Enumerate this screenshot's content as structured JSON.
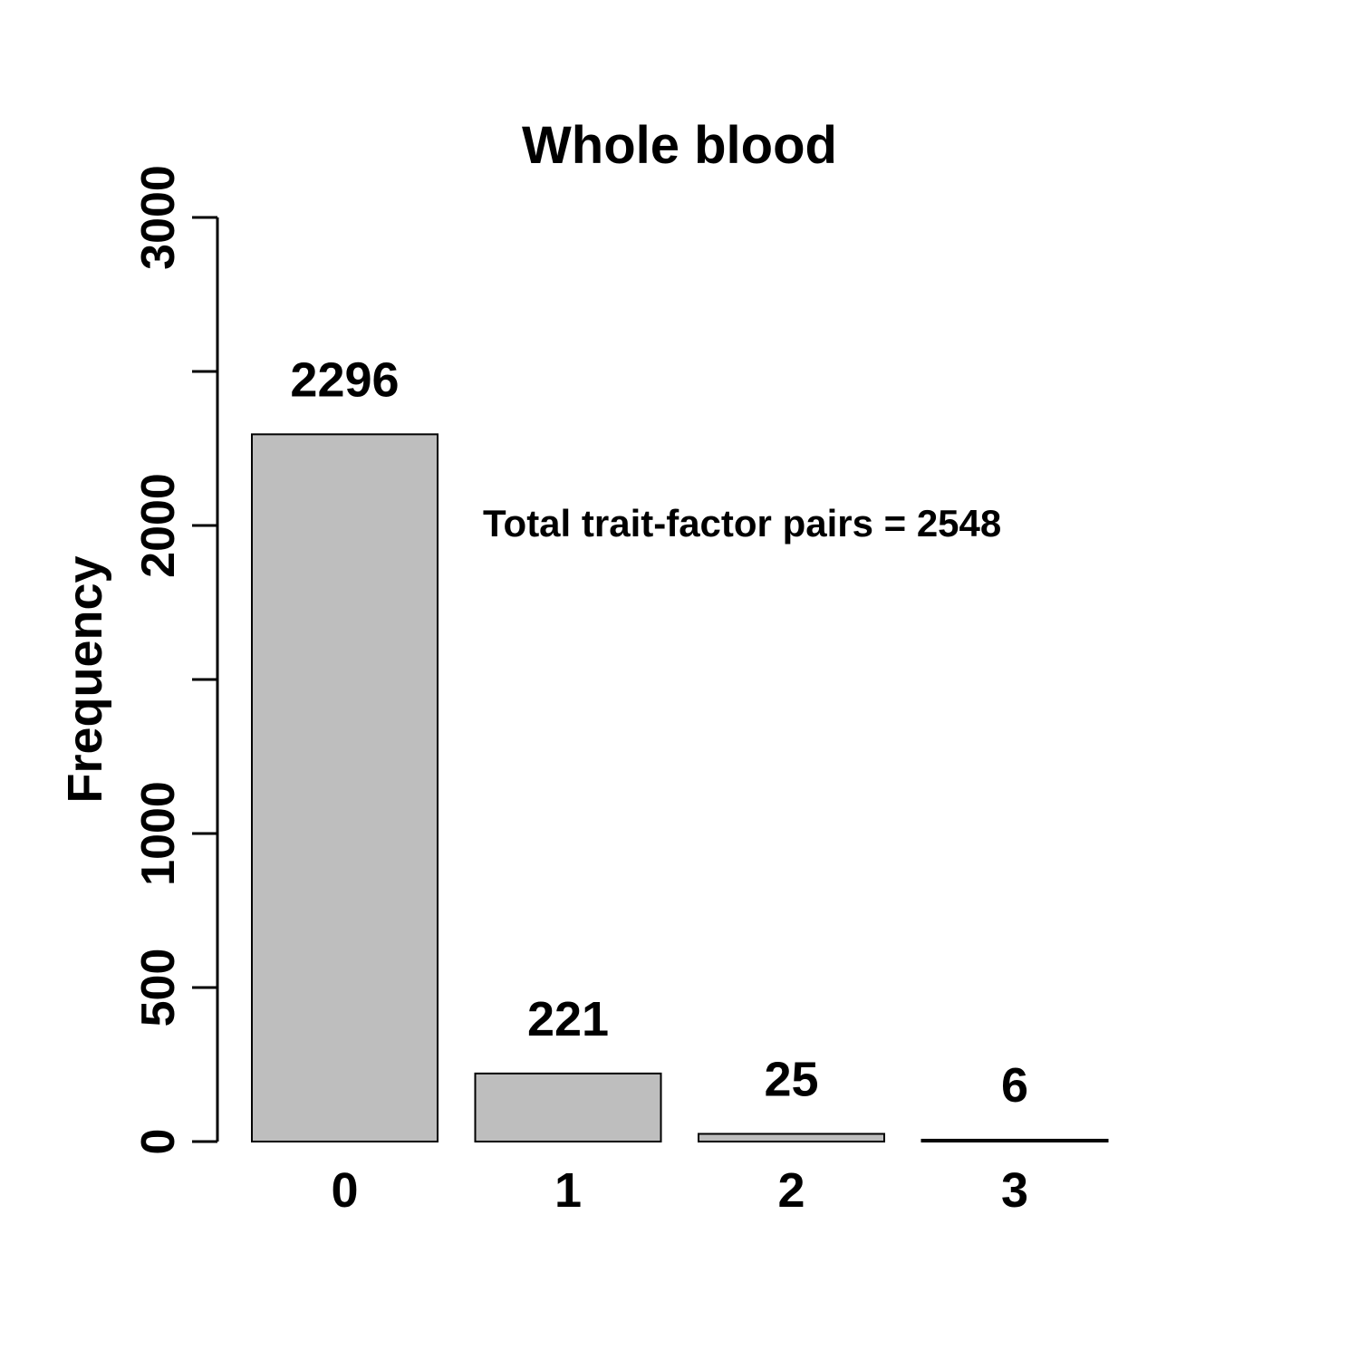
{
  "chart_data": {
    "type": "bar",
    "title": "Whole blood",
    "ylabel": "Frequency",
    "xlabel": "",
    "categories": [
      "0",
      "1",
      "2",
      "3"
    ],
    "values": [
      2296,
      221,
      25,
      6
    ],
    "data_labels": [
      "2296",
      "221",
      "25",
      "6"
    ],
    "ylim": [
      0,
      3000
    ],
    "yticks": [
      0,
      500,
      1000,
      1500,
      2000,
      2500,
      3000
    ],
    "ytick_labels": [
      "0",
      "500",
      "1000",
      "",
      "2000",
      "",
      "3000"
    ],
    "annotation": "Total trait-factor pairs = 2548",
    "bar_color": "#bebebe",
    "grid": false,
    "legend": "none"
  }
}
